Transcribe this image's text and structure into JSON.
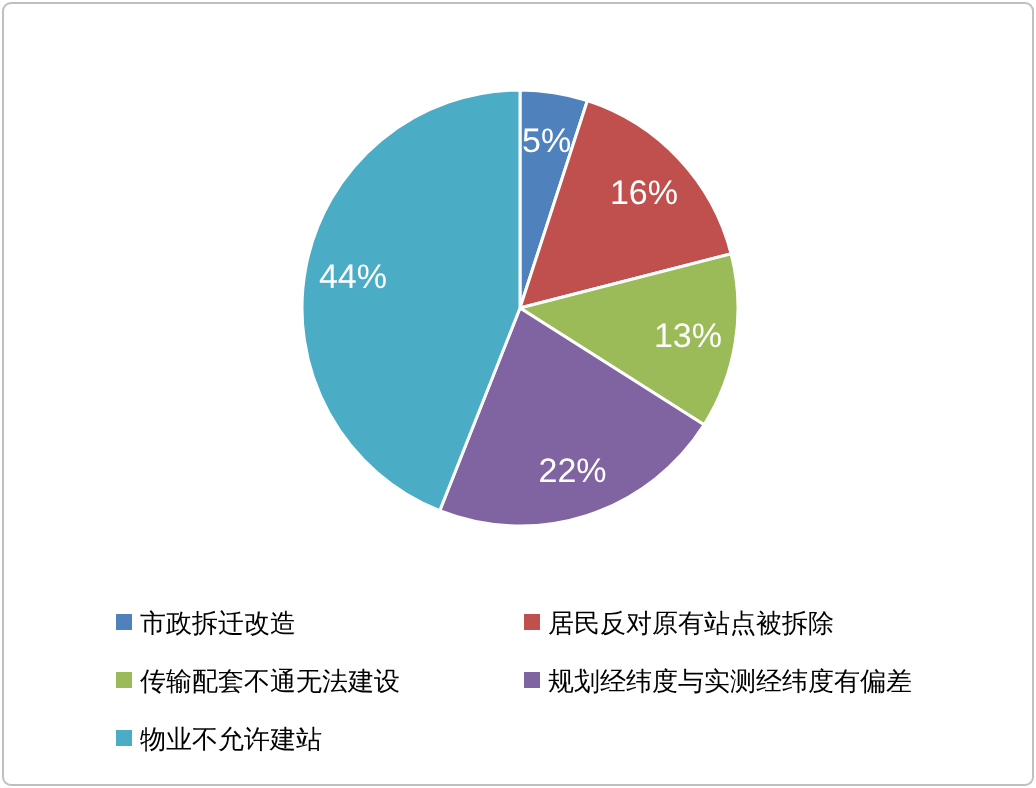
{
  "chart_data": {
    "type": "pie",
    "categories": [
      "市政拆迁改造",
      "居民反对原有站点被拆除",
      "传输配套不通无法建设",
      "规划经纬度与实测经纬度有偏差",
      "物业不允许建站"
    ],
    "values": [
      5,
      16,
      13,
      22,
      44
    ],
    "colors": [
      "#4f81bd",
      "#c0504d",
      "#9bbb59",
      "#8064a2",
      "#4bacc6"
    ],
    "value_labels": [
      "5%",
      "16%",
      "13%",
      "22%",
      "44%"
    ],
    "legend": "bottom"
  }
}
